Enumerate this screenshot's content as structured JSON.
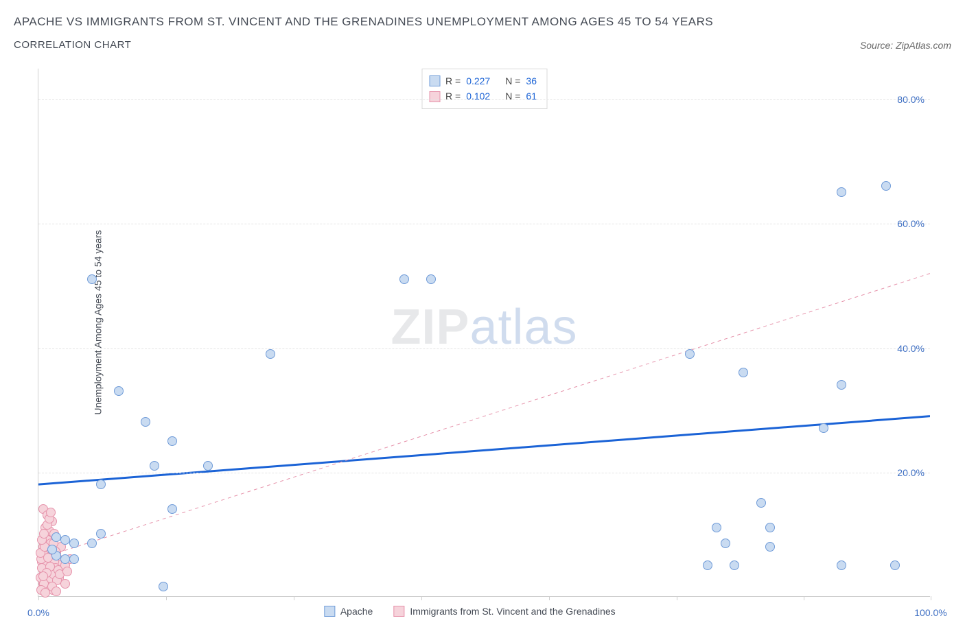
{
  "title_line": "APACHE VS IMMIGRANTS FROM ST. VINCENT AND THE GRENADINES UNEMPLOYMENT AMONG AGES 45 TO 54 YEARS",
  "subtitle_line": "CORRELATION CHART",
  "source_prefix": "Source: ",
  "source_name": "ZipAtlas.com",
  "yaxis_label": "Unemployment Among Ages 45 to 54 years",
  "watermark_a": "ZIP",
  "watermark_b": "atlas",
  "chart": {
    "type": "scatter",
    "xlim": [
      0,
      100
    ],
    "ylim": [
      0,
      85
    ],
    "y_ticks": [
      20,
      40,
      60,
      80
    ],
    "y_tick_labels": [
      "20.0%",
      "40.0%",
      "60.0%",
      "80.0%"
    ],
    "x_tick_positions": [
      0,
      14.3,
      28.6,
      42.9,
      57.2,
      71.5,
      85.8,
      100
    ],
    "x_min_label": "0.0%",
    "x_max_label": "100.0%",
    "background_color": "#ffffff",
    "grid_color": "#e4e4e4",
    "axis_color": "#cfcfcf",
    "marker_size": 14,
    "series": [
      {
        "name": "Apache",
        "fill": "#c9dbf1",
        "stroke": "#6f9bd8",
        "R": "0.227",
        "N": "36",
        "trend": {
          "y_at_x0": 18.0,
          "y_at_x100": 29.0,
          "stroke": "#1b63d6",
          "width": 3,
          "dash": "none"
        },
        "points": [
          [
            6,
            51
          ],
          [
            9,
            33
          ],
          [
            12,
            28
          ],
          [
            15,
            25
          ],
          [
            13,
            21
          ],
          [
            19,
            21
          ],
          [
            7,
            18
          ],
          [
            7,
            10
          ],
          [
            4,
            8.5
          ],
          [
            6,
            8.5
          ],
          [
            2,
            9.5
          ],
          [
            3,
            9
          ],
          [
            14,
            1.5
          ],
          [
            15,
            14
          ],
          [
            4,
            6
          ],
          [
            2,
            6.5
          ],
          [
            3,
            6
          ],
          [
            1.5,
            7.5
          ],
          [
            26,
            39
          ],
          [
            41,
            51
          ],
          [
            44,
            51
          ],
          [
            73,
            39
          ],
          [
            79,
            36
          ],
          [
            90,
            34
          ],
          [
            95,
            66
          ],
          [
            90,
            65
          ],
          [
            88,
            27
          ],
          [
            76,
            11
          ],
          [
            82,
            11
          ],
          [
            81,
            15
          ],
          [
            82,
            8
          ],
          [
            75,
            5
          ],
          [
            78,
            5
          ],
          [
            90,
            5
          ],
          [
            96,
            5
          ],
          [
            77,
            8.5
          ]
        ]
      },
      {
        "name": "Immigrants from St. Vincent and the Grenadines",
        "fill": "#f6d3db",
        "stroke": "#e693ab",
        "R": "0.102",
        "N": "61",
        "trend": {
          "y_at_x0": 6.0,
          "y_at_x100": 52.0,
          "stroke": "#e693ab",
          "width": 1,
          "dash": "5,5"
        },
        "points": [
          [
            0.5,
            14
          ],
          [
            1.0,
            13
          ],
          [
            1.5,
            12
          ],
          [
            0.8,
            11
          ],
          [
            1.2,
            10.5
          ],
          [
            1.8,
            10
          ],
          [
            0.6,
            9.5
          ],
          [
            1.0,
            9
          ],
          [
            1.4,
            8.5
          ],
          [
            0.5,
            8
          ],
          [
            1.1,
            7.5
          ],
          [
            1.6,
            7
          ],
          [
            0.7,
            6.5
          ],
          [
            1.3,
            6
          ],
          [
            0.4,
            5.5
          ],
          [
            0.9,
            5
          ],
          [
            1.5,
            4.5
          ],
          [
            0.6,
            4
          ],
          [
            1.2,
            3.5
          ],
          [
            0.8,
            3
          ],
          [
            1.4,
            2.5
          ],
          [
            0.5,
            2
          ],
          [
            1.0,
            1.5
          ],
          [
            1.6,
            1
          ],
          [
            2.0,
            7
          ],
          [
            2.2,
            6
          ],
          [
            2.4,
            5
          ],
          [
            2.0,
            4
          ],
          [
            2.3,
            3
          ],
          [
            2.5,
            8
          ],
          [
            0.3,
            6
          ],
          [
            0.4,
            4.5
          ],
          [
            0.2,
            3
          ],
          [
            0.6,
            2
          ],
          [
            0.3,
            1
          ],
          [
            0.8,
            0.5
          ],
          [
            1.8,
            5.5
          ],
          [
            1.9,
            4.5
          ],
          [
            1.7,
            3.5
          ],
          [
            2.1,
            2.5
          ],
          [
            1.5,
            1.5
          ],
          [
            2.0,
            0.8
          ],
          [
            0.2,
            7
          ],
          [
            0.7,
            8
          ],
          [
            1.1,
            6.2
          ],
          [
            1.3,
            4.8
          ],
          [
            0.9,
            3.8
          ],
          [
            0.5,
            3.2
          ],
          [
            1.7,
            8.5
          ],
          [
            1.9,
            7.2
          ],
          [
            2.2,
            4.2
          ],
          [
            2.4,
            3.5
          ],
          [
            0.4,
            9
          ],
          [
            0.6,
            10
          ],
          [
            1.0,
            11.5
          ],
          [
            1.2,
            12.5
          ],
          [
            1.4,
            13.5
          ],
          [
            3.0,
            5
          ],
          [
            3.2,
            4
          ],
          [
            3.5,
            6
          ],
          [
            3.0,
            2
          ]
        ]
      }
    ],
    "legend_stats_label_R": "R =",
    "legend_stats_label_N": "N ="
  }
}
